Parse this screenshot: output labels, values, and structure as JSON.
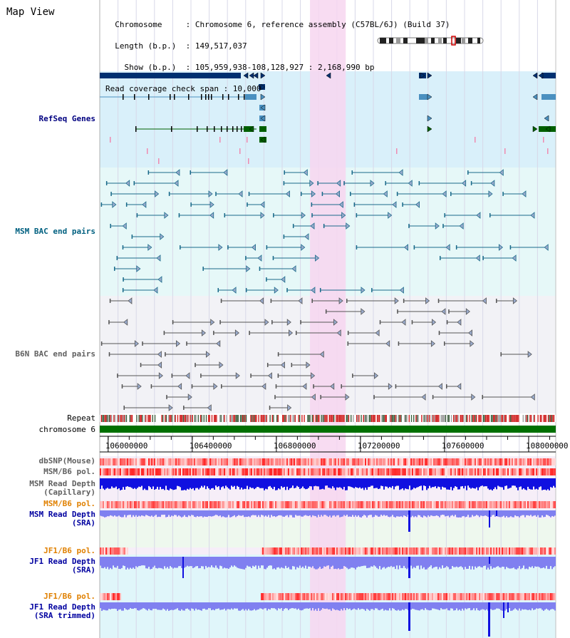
{
  "header": {
    "title": "Map View",
    "info_lines": [
      "  Chromosome     : Chromosome 6, reference assembly (C57BL/6J) (Build 37)",
      "  Length (b.p.)  : 149,517,037",
      "    Show (b.p.)  : 105,959,938-108,128,927 : 2,168,990 bp",
      "Read coverage check span : 10,000"
    ]
  },
  "region": {
    "start": 105959938,
    "end": 108128927
  },
  "axis": {
    "ticks": [
      106000000,
      106400000,
      106800000,
      107200000,
      107600000,
      108000000
    ],
    "tick_labels": [
      "106000000",
      "106400000",
      "106800000",
      "107200000",
      "107600000",
      "108000000"
    ]
  },
  "highlight": {
    "start": 106960000,
    "end": 107130000,
    "color": "#f7d6f0"
  },
  "tracks": {
    "refseq": {
      "label": "RefSeq Genes",
      "color": "#000080",
      "bg": "#d9f0fa"
    },
    "msm_bac": {
      "label": "MSM BAC end pairs",
      "color": "#006080",
      "bg": "#e6f8f8"
    },
    "b6n_bac": {
      "label": "B6N BAC end pairs",
      "color": "#606060",
      "bg": "#f2f2f6"
    },
    "repeat": {
      "label": "Repeat",
      "color": "#000000"
    },
    "chromosome": {
      "label": "chromosome 6",
      "color": "#000000",
      "bar_color": "#007000"
    },
    "dbsnp": {
      "label": "dbSNP(Mouse)",
      "color": "#606060"
    },
    "msm_pol": {
      "label": "MSM/B6 pol.",
      "color": "#606060"
    },
    "msm_depth_cap": {
      "label_lines": [
        "MSM Read Depth",
        "(Capillary)"
      ],
      "color": "#606060"
    },
    "msm_pol2": {
      "label": "MSM/B6 pol.",
      "color": "#e08000"
    },
    "msm_depth_sra": {
      "label_lines": [
        "MSM Read Depth",
        "(SRA)"
      ],
      "color": "#0000a0"
    },
    "jf1_pol": {
      "label": "JF1/B6 pol.",
      "color": "#e08000"
    },
    "jf1_depth_sra": {
      "label_lines": [
        "JF1 Read Depth",
        "(SRA)"
      ],
      "color": "#0000a0"
    },
    "jf1_pol2": {
      "label": "JF1/B6 pol.",
      "color": "#e08000"
    },
    "jf1_depth_trim": {
      "label_lines": [
        "JF1 Read Depth",
        "(SRA trimmed)"
      ],
      "color": "#0000a0"
    }
  },
  "colors": {
    "gene_dark": "#003070",
    "gene_mid": "#4a90c0",
    "gene_green": "#006000",
    "bac_msm": "#1a6a8a",
    "bac_b6n": "#555555",
    "depth_dark": "#1010e0",
    "depth_light": "#8080f0"
  }
}
